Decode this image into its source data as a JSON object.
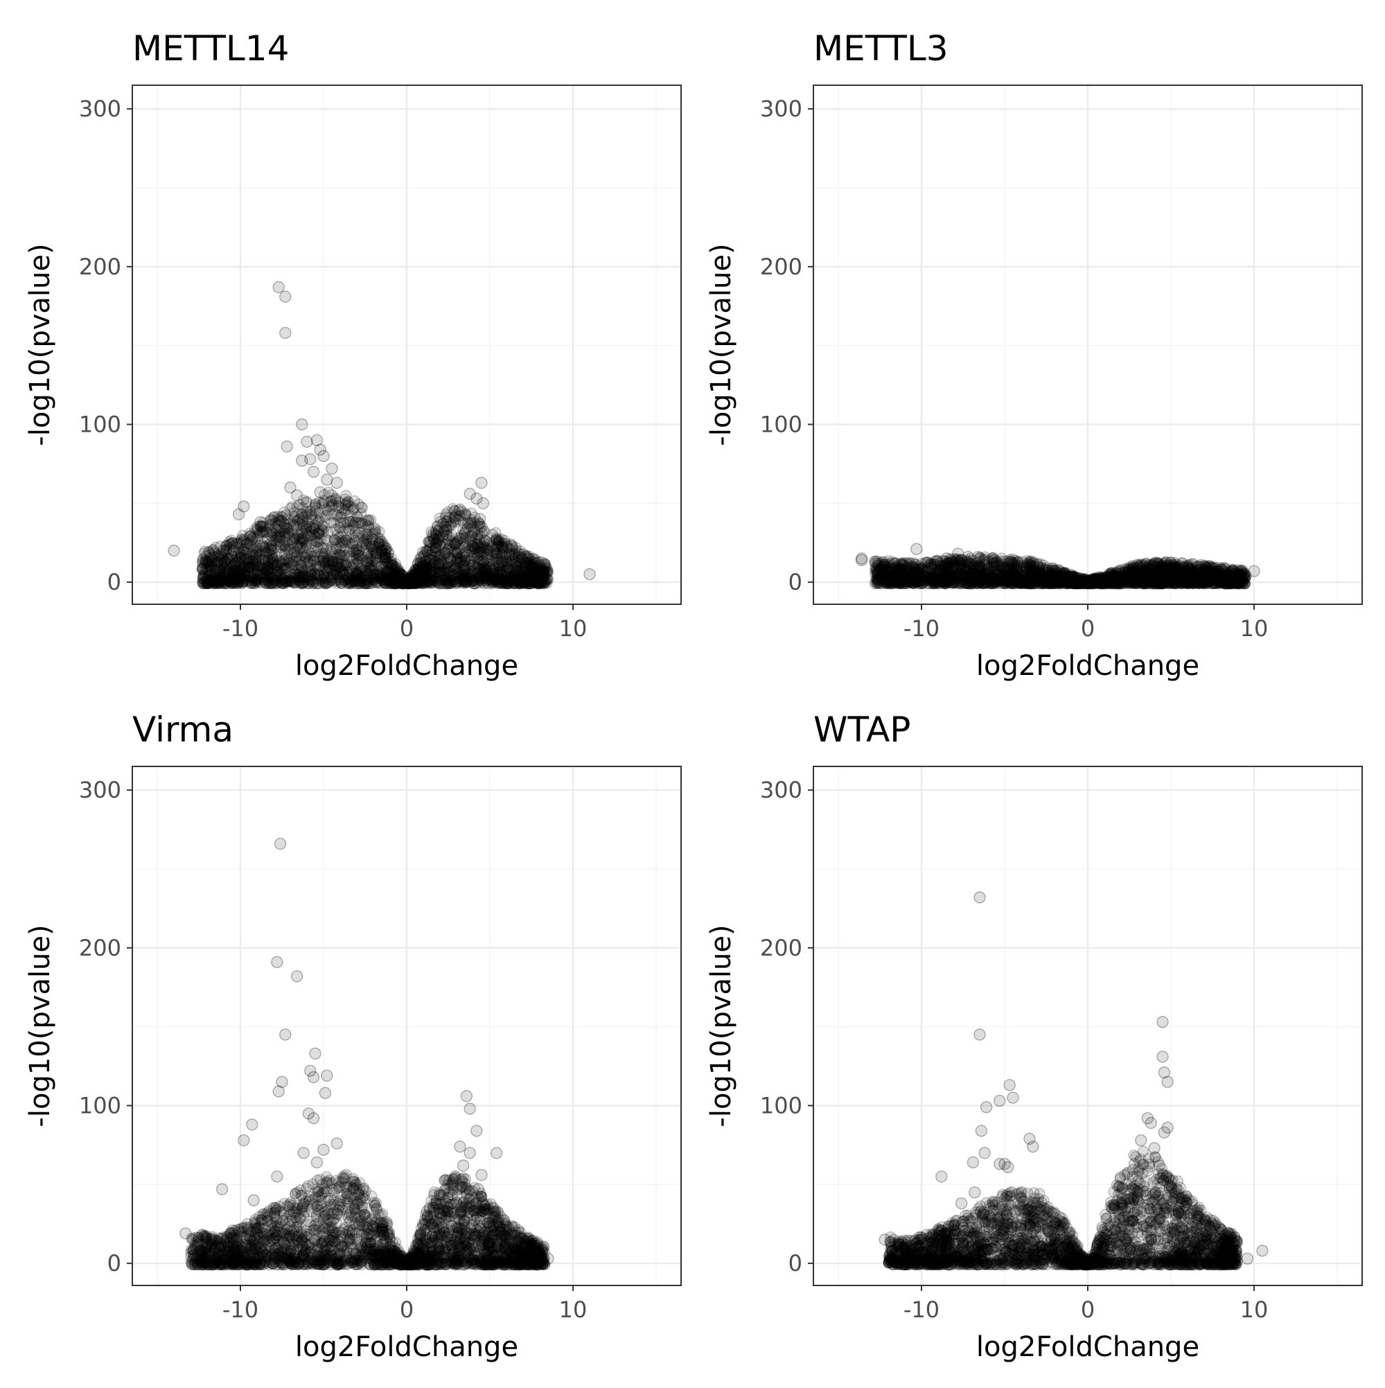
{
  "chart_data": [
    {
      "type": "scatter",
      "title": "METTL14",
      "xlabel": "log2FoldChange",
      "ylabel": "-log10(pvalue)",
      "xlim": [
        -16.5,
        16.5
      ],
      "ylim": [
        -14,
        315
      ],
      "xticks": [
        -10,
        0,
        10
      ],
      "yticks": [
        0,
        100,
        200,
        300
      ],
      "grid": true,
      "legend": "none",
      "point_color": "#000000",
      "profile": {
        "left_peak_x": -4.5,
        "left_peak_y": 55,
        "right_peak_x": 3.0,
        "right_peak_y": 45,
        "left_edge_x": -12.3,
        "left_edge_y": 16,
        "right_edge_x": 8.5
      },
      "points": [
        [
          -7.7,
          187
        ],
        [
          -7.3,
          181
        ],
        [
          -7.3,
          158
        ],
        [
          -6.3,
          100
        ],
        [
          -7.2,
          86
        ],
        [
          -5.4,
          90
        ],
        [
          -5.2,
          84
        ],
        [
          -6.0,
          89
        ],
        [
          -5.8,
          78
        ],
        [
          -5.0,
          80
        ],
        [
          -4.5,
          72
        ],
        [
          -6.3,
          77
        ],
        [
          -5.6,
          70
        ],
        [
          -4.8,
          65
        ],
        [
          -7.0,
          60
        ],
        [
          -4.2,
          63
        ],
        [
          -6.6,
          55
        ],
        [
          -5.2,
          57
        ],
        [
          -9.8,
          48
        ],
        [
          -10.1,
          43
        ],
        [
          -8.8,
          38
        ],
        [
          -9.4,
          29
        ],
        [
          -14.0,
          20
        ],
        [
          -10.4,
          20
        ],
        [
          -10.2,
          3
        ],
        [
          4.5,
          63
        ],
        [
          3.8,
          56
        ],
        [
          4.2,
          53
        ],
        [
          4.6,
          50
        ],
        [
          3.2,
          46
        ],
        [
          4.4,
          40
        ],
        [
          4.5,
          35
        ],
        [
          6.3,
          23
        ],
        [
          5.8,
          10
        ],
        [
          7.7,
          6
        ],
        [
          8.4,
          2
        ],
        [
          11.0,
          5
        ]
      ]
    },
    {
      "type": "scatter",
      "title": "METTL3",
      "xlabel": "log2FoldChange",
      "ylabel": "-log10(pvalue)",
      "xlim": [
        -16.5,
        16.5
      ],
      "ylim": [
        -14,
        315
      ],
      "xticks": [
        -10,
        0,
        10
      ],
      "yticks": [
        0,
        100,
        200,
        300
      ],
      "grid": true,
      "legend": "none",
      "point_color": "#000000",
      "profile": {
        "left_peak_x": -6.0,
        "left_peak_y": 14,
        "right_peak_x": 4.6,
        "right_peak_y": 11,
        "left_edge_x": -12.8,
        "left_edge_y": 13,
        "right_edge_x": 9.5
      },
      "points": [
        [
          -13.6,
          15
        ],
        [
          -13.6,
          14
        ],
        [
          -10.3,
          21
        ],
        [
          -12.8,
          13
        ],
        [
          -7.8,
          18
        ],
        [
          -7.2,
          16
        ],
        [
          -6.6,
          16
        ],
        [
          -8.5,
          15
        ],
        [
          -5.6,
          14
        ],
        [
          -9.2,
          11
        ],
        [
          5.3,
          11
        ],
        [
          4.8,
          10
        ],
        [
          6.0,
          10
        ],
        [
          7.0,
          8
        ],
        [
          9.2,
          7
        ],
        [
          10.0,
          7
        ],
        [
          9.5,
          4
        ],
        [
          8.8,
          3
        ]
      ]
    },
    {
      "type": "scatter",
      "title": "Virma",
      "xlabel": "log2FoldChange",
      "ylabel": "-log10(pvalue)",
      "xlim": [
        -16.5,
        16.5
      ],
      "ylim": [
        -14,
        315
      ],
      "xticks": [
        -10,
        0,
        10
      ],
      "yticks": [
        0,
        100,
        200,
        300
      ],
      "grid": true,
      "legend": "none",
      "point_color": "#000000",
      "profile": {
        "left_peak_x": -4.0,
        "left_peak_y": 55,
        "right_peak_x": 2.8,
        "right_peak_y": 55,
        "left_edge_x": -13.0,
        "left_edge_y": 18,
        "right_edge_x": 8.3
      },
      "points": [
        [
          -7.6,
          266
        ],
        [
          -7.8,
          191
        ],
        [
          -6.6,
          182
        ],
        [
          -7.3,
          145
        ],
        [
          -5.5,
          133
        ],
        [
          -5.8,
          122
        ],
        [
          -4.8,
          119
        ],
        [
          -5.6,
          118
        ],
        [
          -7.5,
          115
        ],
        [
          -7.7,
          109
        ],
        [
          -4.9,
          108
        ],
        [
          -5.9,
          95
        ],
        [
          -5.6,
          92
        ],
        [
          -9.3,
          88
        ],
        [
          -9.8,
          78
        ],
        [
          -4.2,
          76
        ],
        [
          -5.0,
          72
        ],
        [
          -6.2,
          70
        ],
        [
          -5.4,
          64
        ],
        [
          -7.8,
          55
        ],
        [
          -11.1,
          47
        ],
        [
          -9.2,
          40
        ],
        [
          -8.0,
          35
        ],
        [
          -13.3,
          19
        ],
        [
          3.6,
          106
        ],
        [
          3.8,
          98
        ],
        [
          4.2,
          84
        ],
        [
          3.2,
          74
        ],
        [
          3.8,
          70
        ],
        [
          5.4,
          70
        ],
        [
          3.4,
          62
        ],
        [
          4.5,
          56
        ],
        [
          4.3,
          47
        ],
        [
          4.6,
          37
        ],
        [
          5.6,
          12
        ],
        [
          8.5,
          3
        ]
      ]
    },
    {
      "type": "scatter",
      "title": "WTAP",
      "xlabel": "log2FoldChange",
      "ylabel": "-log10(pvalue)",
      "xlim": [
        -16.5,
        16.5
      ],
      "ylim": [
        -14,
        315
      ],
      "xticks": [
        -10,
        0,
        10
      ],
      "yticks": [
        0,
        100,
        200,
        300
      ],
      "grid": true,
      "legend": "none",
      "point_color": "#000000",
      "profile": {
        "left_peak_x": -3.8,
        "left_peak_y": 45,
        "right_peak_x": 3.2,
        "right_peak_y": 70,
        "left_edge_x": -12.0,
        "left_edge_y": 15,
        "right_edge_x": 9.0
      },
      "points": [
        [
          -6.5,
          232
        ],
        [
          -6.5,
          145
        ],
        [
          -4.7,
          113
        ],
        [
          -5.3,
          103
        ],
        [
          -4.5,
          105
        ],
        [
          -6.1,
          99
        ],
        [
          -6.4,
          84
        ],
        [
          -3.5,
          79
        ],
        [
          -3.3,
          74
        ],
        [
          -6.2,
          70
        ],
        [
          -6.9,
          64
        ],
        [
          -5.3,
          63
        ],
        [
          -5.0,
          63
        ],
        [
          -4.8,
          61
        ],
        [
          -6.8,
          45
        ],
        [
          -7.6,
          38
        ],
        [
          -8.8,
          55
        ],
        [
          -12.2,
          15
        ],
        [
          -10.3,
          13
        ],
        [
          -10.0,
          7
        ],
        [
          4.5,
          153
        ],
        [
          4.5,
          131
        ],
        [
          4.6,
          121
        ],
        [
          4.8,
          115
        ],
        [
          3.6,
          92
        ],
        [
          3.8,
          89
        ],
        [
          4.8,
          86
        ],
        [
          4.6,
          83
        ],
        [
          3.2,
          78
        ],
        [
          4.0,
          73
        ],
        [
          4.3,
          62
        ],
        [
          5.0,
          52
        ],
        [
          5.3,
          45
        ],
        [
          5.8,
          32
        ],
        [
          6.3,
          23
        ],
        [
          7.3,
          12
        ],
        [
          9.6,
          3
        ],
        [
          10.5,
          8
        ]
      ]
    }
  ]
}
